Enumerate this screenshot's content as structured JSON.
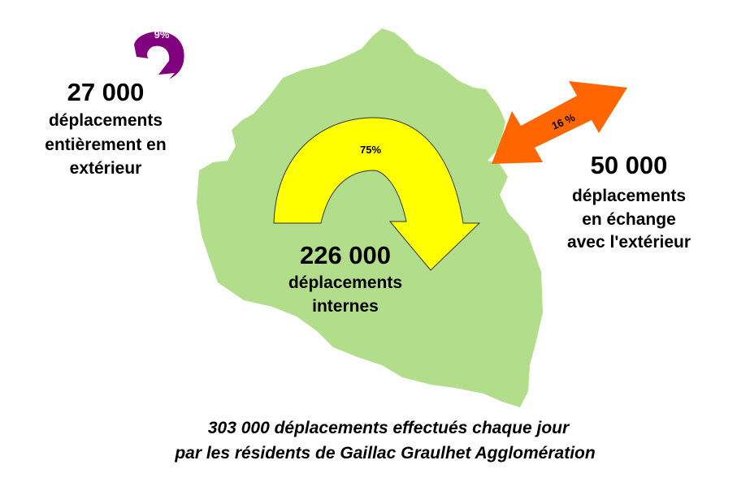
{
  "colors": {
    "territory": "#b2de8c",
    "internal_arrow": "#ffff00",
    "exchange_arrow": "#ff6600",
    "external_arrow": "#800080"
  },
  "external": {
    "percent": "9%",
    "value": "27 000",
    "lines": [
      "déplacements",
      "entièrement en",
      "extérieur"
    ]
  },
  "internal": {
    "percent": "75%",
    "value": "226 000",
    "lines": [
      "déplacements",
      "internes"
    ]
  },
  "exchange": {
    "percent": "16 %",
    "value": "50 000",
    "lines": [
      "déplacements",
      "en échange",
      "avec l'extérieur"
    ]
  },
  "footer": {
    "line1": "303 000 déplacements effectués chaque jour",
    "line2": "par les résidents de Gaillac Graulhet Agglomération"
  }
}
